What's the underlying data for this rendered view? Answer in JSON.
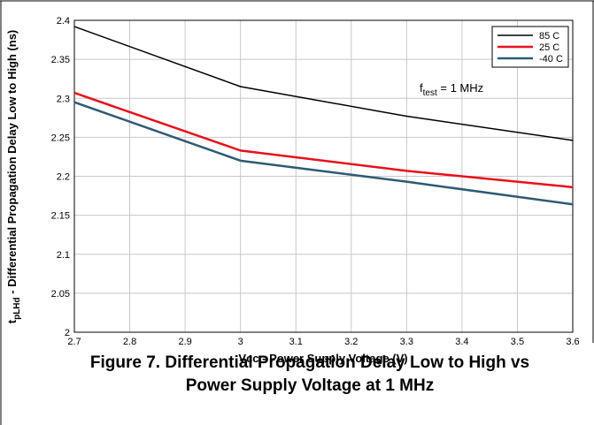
{
  "chart_data": {
    "type": "line",
    "x": [
      2.7,
      3.0,
      3.3,
      3.6
    ],
    "series": [
      {
        "name": "85 C",
        "color": "#000000",
        "values": [
          2.392,
          2.315,
          2.277,
          2.246
        ]
      },
      {
        "name": "25 C",
        "color": "#e8101a",
        "values": [
          2.307,
          2.233,
          2.207,
          2.186
        ]
      },
      {
        "name": "-40 C",
        "color": "#2e5a73",
        "values": [
          2.295,
          2.22,
          2.193,
          2.164
        ]
      }
    ],
    "xlabel": "Vcc - Power Supply Voltage  (V)",
    "ylabel_main": "t",
    "ylabel_sub": "pLHd",
    "ylabel_rest": " - Differential Propagation Delay Low to High (ns)",
    "xlim": [
      2.7,
      3.6
    ],
    "ylim": [
      2.0,
      2.4
    ],
    "xticks": [
      "2.7",
      "2.8",
      "2.9",
      "3",
      "3.1",
      "3.2",
      "3.3",
      "3.4",
      "3.5",
      "3.6"
    ],
    "yticks": [
      "2",
      "2.05",
      "2.1",
      "2.15",
      "2.2",
      "2.25",
      "2.3",
      "2.35",
      "2.4"
    ],
    "grid": true,
    "legend_position": "top-right",
    "annotation": {
      "main": "f",
      "sub": "test",
      "rest": " = 1 MHz"
    }
  },
  "caption_line1": "Figure 7. Differential Propagation Delay Low to High vs",
  "caption_line2": "Power Supply Voltage at 1 MHz"
}
